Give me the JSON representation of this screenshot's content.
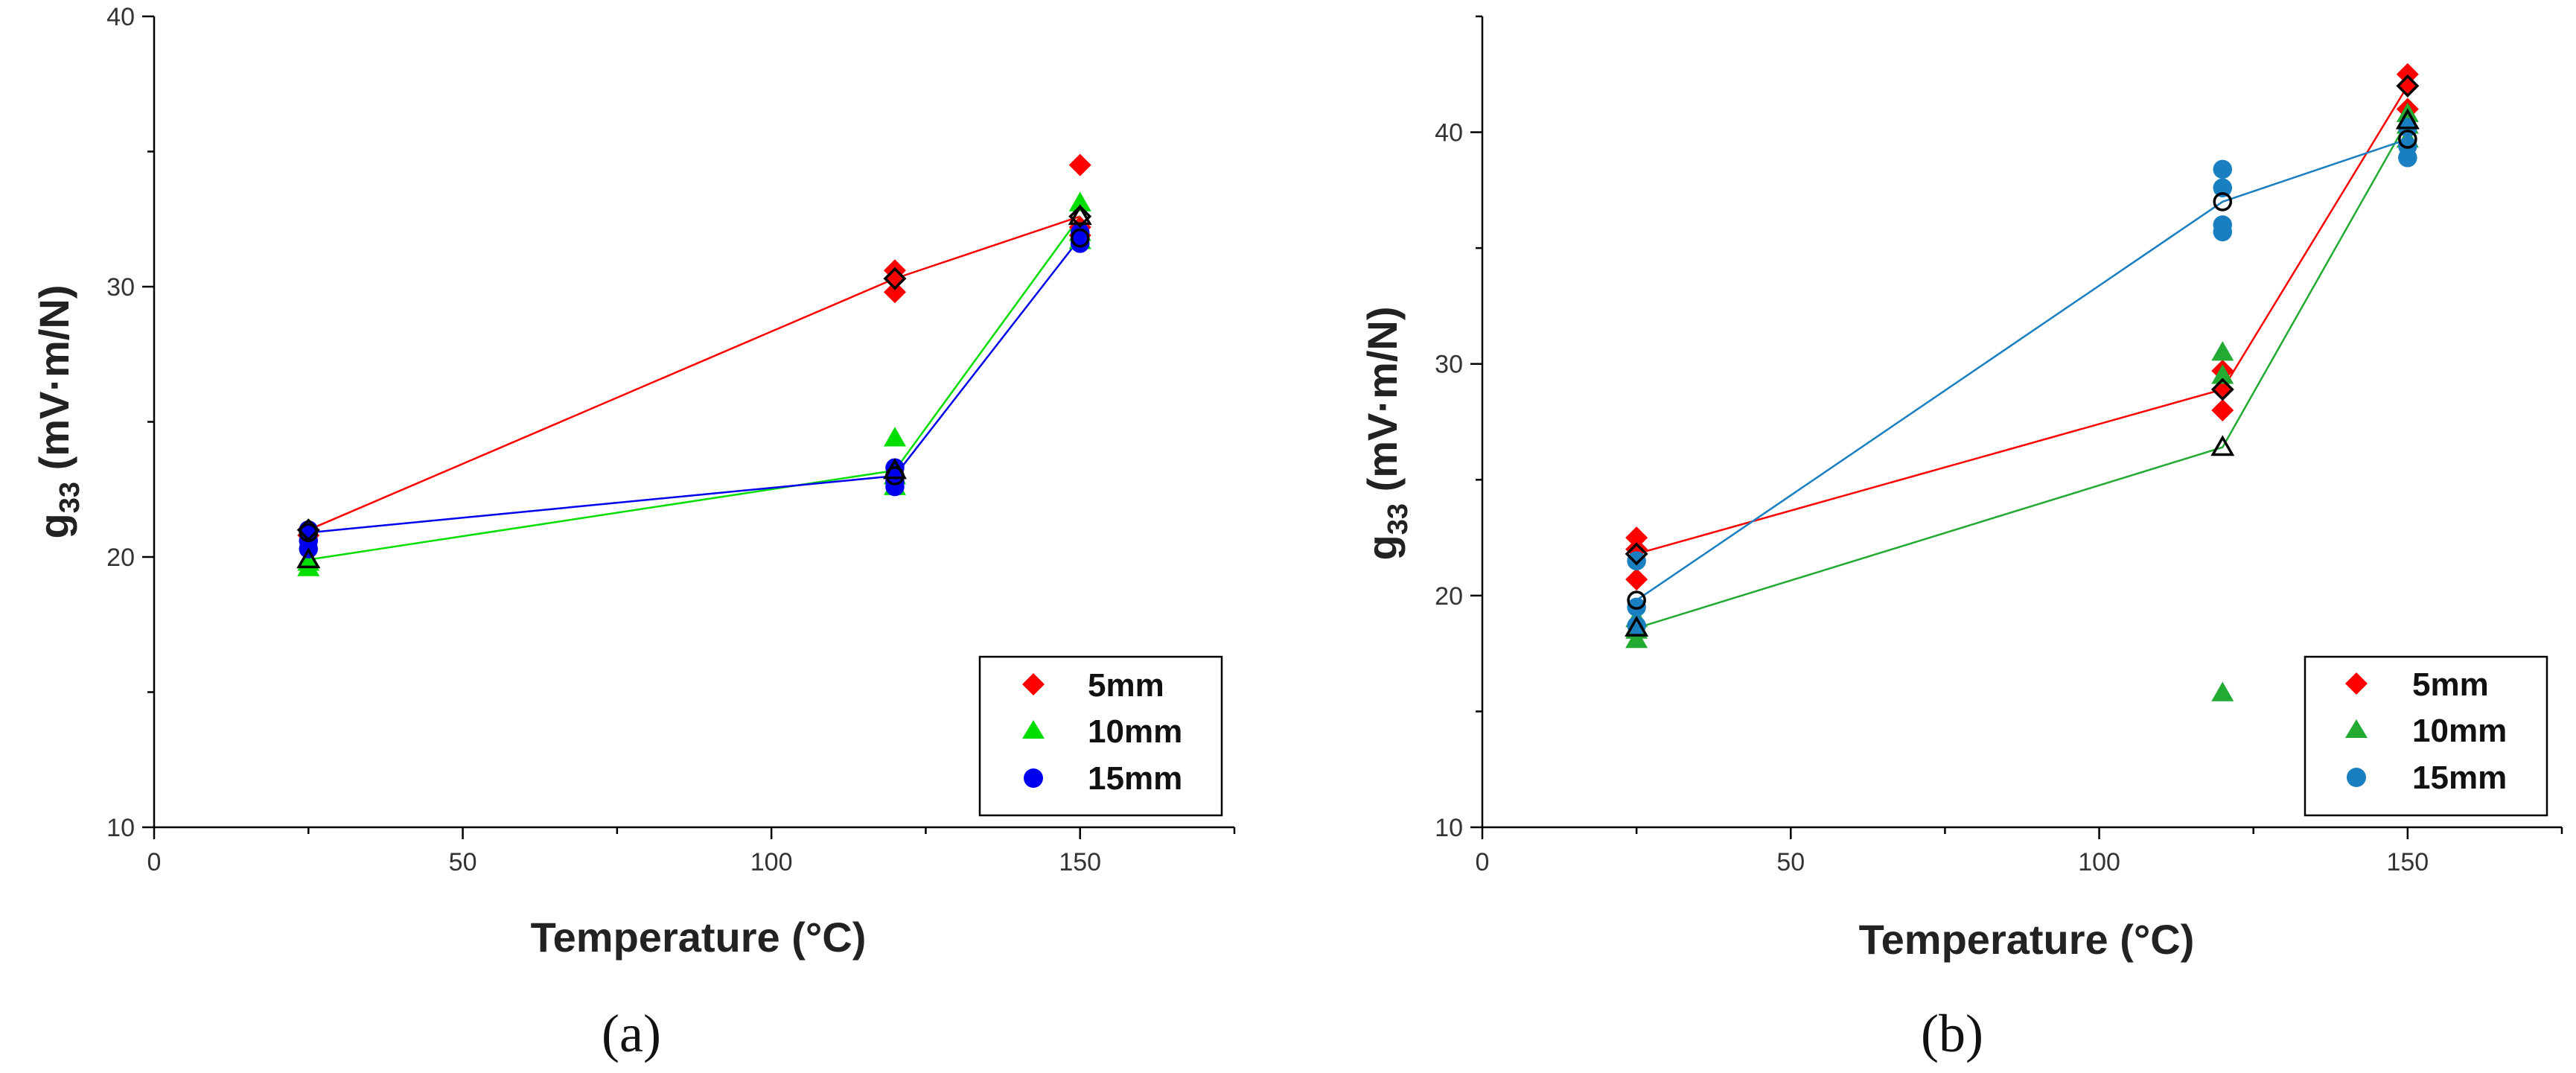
{
  "chart_data": [
    {
      "type": "scatter",
      "panel_label": "(a)",
      "xlabel": "Temperature (°C)",
      "ylabel_main": "g",
      "ylabel_sub": "33",
      "ylabel_units": " (mV·m/N)",
      "xlim": [
        0,
        175
      ],
      "ylim": [
        10,
        40
      ],
      "xticks": [
        0,
        50,
        100,
        150
      ],
      "yticks": [
        10,
        20,
        30,
        40
      ],
      "legend_position": "bottom-right",
      "series": [
        {
          "name": "5mm",
          "color": "#ff0000",
          "marker": "diamond",
          "points": [
            [
              25,
              21.0
            ],
            [
              25,
              20.8
            ],
            [
              120,
              30.6
            ],
            [
              120,
              30.3
            ],
            [
              120,
              29.8
            ],
            [
              150,
              34.5
            ],
            [
              150,
              32.2
            ],
            [
              150,
              31.9
            ]
          ],
          "mean": [
            [
              25,
              21.0
            ],
            [
              120,
              30.3
            ],
            [
              150,
              32.6
            ]
          ],
          "mean_marker": "diamond-open"
        },
        {
          "name": "10mm",
          "color": "#00dd00",
          "marker": "triangle",
          "points": [
            [
              25,
              19.6
            ],
            [
              25,
              19.8
            ],
            [
              120,
              24.4
            ],
            [
              120,
              23.0
            ],
            [
              120,
              22.6
            ],
            [
              150,
              33.1
            ],
            [
              150,
              32.0
            ],
            [
              150,
              31.7
            ]
          ],
          "mean": [
            [
              25,
              19.9
            ],
            [
              120,
              23.2
            ],
            [
              150,
              32.6
            ]
          ],
          "mean_marker": "triangle-open"
        },
        {
          "name": "15mm",
          "color": "#0000ee",
          "marker": "circle",
          "points": [
            [
              25,
              20.3
            ],
            [
              25,
              20.6
            ],
            [
              25,
              21.0
            ],
            [
              120,
              23.3
            ],
            [
              120,
              22.8
            ],
            [
              120,
              22.6
            ],
            [
              150,
              31.8
            ],
            [
              150,
              32.0
            ],
            [
              150,
              31.6
            ]
          ],
          "mean": [
            [
              25,
              20.9
            ],
            [
              120,
              23.0
            ],
            [
              150,
              31.8
            ]
          ],
          "mean_marker": "circle-open"
        }
      ]
    },
    {
      "type": "scatter",
      "panel_label": "(b)",
      "xlabel": "Temperature (°C)",
      "ylabel_main": "g",
      "ylabel_sub": "33",
      "ylabel_units": " (mV·m/N)",
      "xlim": [
        0,
        175
      ],
      "ylim": [
        10,
        45
      ],
      "xticks": [
        0,
        50,
        100,
        150
      ],
      "yticks": [
        10,
        20,
        30,
        40
      ],
      "legend_position": "bottom-right",
      "series": [
        {
          "name": "5mm",
          "color": "#ff0000",
          "marker": "diamond",
          "points": [
            [
              25,
              22.5
            ],
            [
              25,
              22.0
            ],
            [
              25,
              20.7
            ],
            [
              120,
              29.7
            ],
            [
              120,
              28.9
            ],
            [
              120,
              28.0
            ],
            [
              150,
              42.5
            ],
            [
              150,
              42.0
            ],
            [
              150,
              41.0
            ]
          ],
          "mean": [
            [
              25,
              21.8
            ],
            [
              120,
              28.9
            ],
            [
              150,
              42.0
            ]
          ],
          "mean_marker": "diamond-open"
        },
        {
          "name": "10mm",
          "color": "#22aa33",
          "marker": "triangle",
          "points": [
            [
              25,
              18.1
            ],
            [
              25,
              18.5
            ],
            [
              25,
              19.0
            ],
            [
              120,
              30.5
            ],
            [
              120,
              29.5
            ],
            [
              120,
              15.8
            ],
            [
              150,
              40.8
            ],
            [
              150,
              40.3
            ],
            [
              150,
              39.7
            ]
          ],
          "mean": [
            [
              25,
              18.6
            ],
            [
              120,
              26.4
            ],
            [
              150,
              40.5
            ]
          ],
          "mean_marker": "triangle-open"
        },
        {
          "name": "15mm",
          "color": "#1a7fc0",
          "marker": "circle",
          "points": [
            [
              25,
              21.5
            ],
            [
              25,
              19.5
            ],
            [
              25,
              18.7
            ],
            [
              120,
              38.4
            ],
            [
              120,
              37.6
            ],
            [
              120,
              36.0
            ],
            [
              120,
              35.7
            ],
            [
              150,
              40.2
            ],
            [
              150,
              39.4
            ],
            [
              150,
              38.9
            ]
          ],
          "mean": [
            [
              25,
              19.8
            ],
            [
              120,
              37.0
            ],
            [
              150,
              39.7
            ]
          ],
          "mean_marker": "circle-open"
        }
      ]
    }
  ]
}
